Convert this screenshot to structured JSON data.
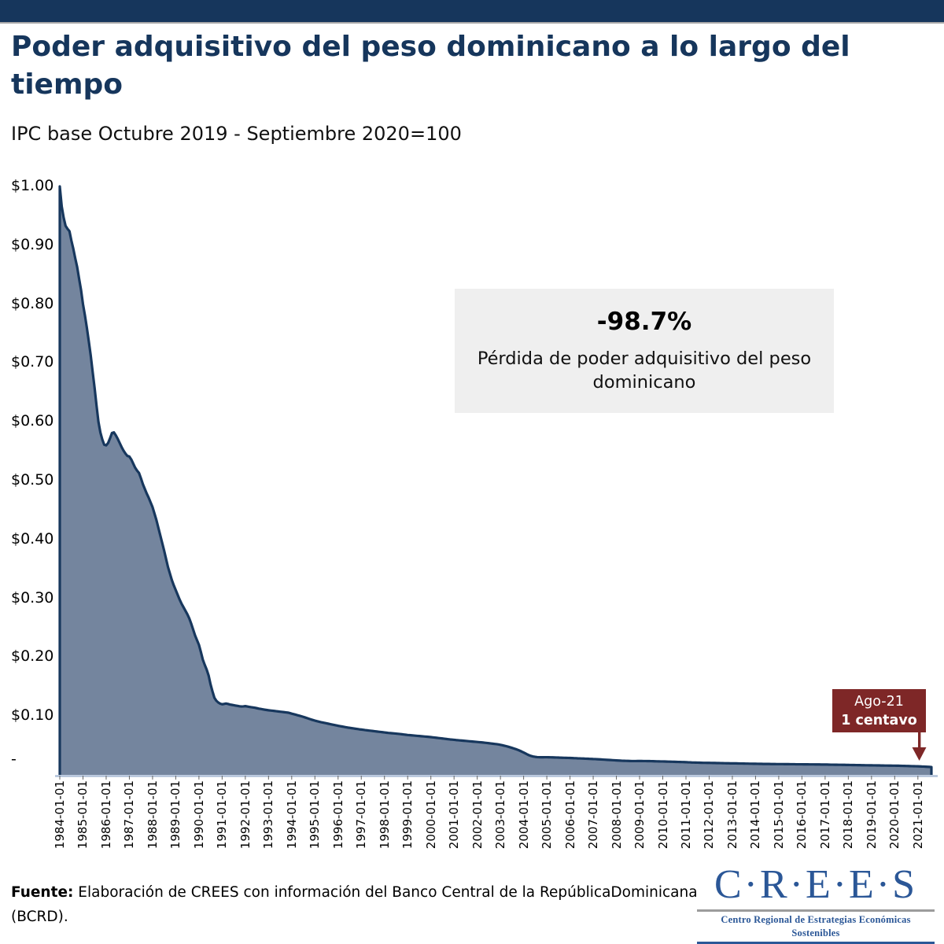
{
  "header": {
    "title": "Poder adquisitivo del peso dominicano a lo largo del tiempo",
    "subtitle": "IPC base Octubre 2019 - Septiembre 2020=100",
    "bar_color": "#16365C"
  },
  "annotation": {
    "headline": "-98.7%",
    "text": "Pérdida de poder adquisitivo del peso dominicano"
  },
  "callout": {
    "label": "Ago-21",
    "value": "1 centavo",
    "color": "#7E2727"
  },
  "footer": {
    "source_label": "Fuente:",
    "source_text": " Elaboración de CREES con información del Banco Central de la RepúblicaDominicana (BCRD).",
    "logo": {
      "name": "C·R·E·E·S",
      "tagline": "Centro Regional de Estrategias Económicas Sostenibles",
      "color": "#2B5797"
    }
  },
  "chart_data": {
    "type": "area",
    "title": "Poder adquisitivo del peso dominicano a lo largo del tiempo",
    "subtitle": "IPC base Octubre 2019 - Septiembre 2020=100",
    "frequency": "monthly",
    "x_start": "1984-01",
    "x_end": "2021-08",
    "ylim": [
      0,
      1
    ],
    "grid": false,
    "legend": false,
    "final_value_label": "1 centavo (Ago-21)",
    "total_loss_pct": -98.7,
    "colors": {
      "area_fill": "#74859E",
      "line": "#17375D",
      "axis": "#AFC0D8"
    },
    "y_tick_labels": [
      "$1.00",
      "$0.90",
      "$0.80",
      "$0.70",
      "$0.60",
      "$0.50",
      "$0.40",
      "$0.30",
      "$0.20",
      "$0.10",
      "-"
    ],
    "y_tick_values": [
      1.0,
      0.9,
      0.8,
      0.7,
      0.6,
      0.5,
      0.4,
      0.3,
      0.2,
      0.1,
      0
    ],
    "x_tick_labels": [
      "1984-01-01",
      "1985-01-01",
      "1986-01-01",
      "1987-01-01",
      "1988-01-01",
      "1989-01-01",
      "1990-01-01",
      "1991-01-01",
      "1992-01-01",
      "1993-01-01",
      "1994-01-01",
      "1995-01-01",
      "1996-01-01",
      "1997-01-01",
      "1998-01-01",
      "1999-01-01",
      "2000-01-01",
      "2001-01-01",
      "2002-01-01",
      "2003-01-01",
      "2004-01-01",
      "2005-01-01",
      "2006-01-01",
      "2007-01-01",
      "2008-01-01",
      "2009-01-01",
      "2010-01-01",
      "2011-01-01",
      "2012-01-01",
      "2013-01-01",
      "2014-01-01",
      "2015-01-01",
      "2016-01-01",
      "2017-01-01",
      "2018-01-01",
      "2019-01-01",
      "2020-01-01",
      "2021-01-01"
    ],
    "values": [
      1.0,
      0.966,
      0.947,
      0.933,
      0.928,
      0.924,
      0.908,
      0.894,
      0.878,
      0.863,
      0.843,
      0.824,
      0.8,
      0.781,
      0.76,
      0.737,
      0.713,
      0.685,
      0.658,
      0.628,
      0.6,
      0.582,
      0.57,
      0.561,
      0.56,
      0.564,
      0.572,
      0.581,
      0.582,
      0.577,
      0.571,
      0.564,
      0.557,
      0.551,
      0.546,
      0.542,
      0.541,
      0.536,
      0.529,
      0.522,
      0.517,
      0.513,
      0.504,
      0.494,
      0.486,
      0.478,
      0.471,
      0.463,
      0.455,
      0.444,
      0.433,
      0.42,
      0.407,
      0.394,
      0.381,
      0.367,
      0.353,
      0.342,
      0.331,
      0.322,
      0.314,
      0.306,
      0.298,
      0.291,
      0.285,
      0.279,
      0.273,
      0.266,
      0.257,
      0.247,
      0.237,
      0.229,
      0.221,
      0.209,
      0.196,
      0.187,
      0.179,
      0.169,
      0.154,
      0.142,
      0.131,
      0.126,
      0.123,
      0.121,
      0.12,
      0.1205,
      0.1212,
      0.1206,
      0.1196,
      0.119,
      0.1184,
      0.1178,
      0.1172,
      0.1166,
      0.1162,
      0.1164,
      0.1168,
      0.1162,
      0.1156,
      0.115,
      0.1145,
      0.114,
      0.1133,
      0.1126,
      0.112,
      0.1114,
      0.1108,
      0.1103,
      0.1098,
      0.1094,
      0.109,
      0.1086,
      0.1082,
      0.1078,
      0.1074,
      0.107,
      0.1066,
      0.1062,
      0.1058,
      0.105,
      0.104,
      0.1032,
      0.1023,
      0.1014,
      0.1005,
      0.0996,
      0.0986,
      0.0975,
      0.0964,
      0.0953,
      0.0942,
      0.0932,
      0.0922,
      0.0913,
      0.0905,
      0.0897,
      0.089,
      0.0883,
      0.0876,
      0.0869,
      0.0862,
      0.0855,
      0.0848,
      0.0841,
      0.0834,
      0.0828,
      0.0822,
      0.0816,
      0.081,
      0.0804,
      0.0799,
      0.0794,
      0.0789,
      0.0784,
      0.0779,
      0.0774,
      0.077,
      0.0766,
      0.0761,
      0.0757,
      0.0753,
      0.0749,
      0.0745,
      0.0741,
      0.0737,
      0.0733,
      0.0729,
      0.0725,
      0.0721,
      0.0717,
      0.0713,
      0.071,
      0.0707,
      0.0704,
      0.0701,
      0.0698,
      0.0694,
      0.069,
      0.0686,
      0.0682,
      0.0678,
      0.0675,
      0.0672,
      0.0669,
      0.0666,
      0.0663,
      0.066,
      0.0657,
      0.0654,
      0.0651,
      0.0648,
      0.0645,
      0.0642,
      0.0638,
      0.0634,
      0.063,
      0.0626,
      0.0622,
      0.0618,
      0.0614,
      0.061,
      0.0606,
      0.0602,
      0.0599,
      0.0596,
      0.0592,
      0.0589,
      0.0586,
      0.0583,
      0.058,
      0.0577,
      0.0574,
      0.0571,
      0.0568,
      0.0565,
      0.0562,
      0.0559,
      0.0556,
      0.0553,
      0.055,
      0.0546,
      0.0542,
      0.0538,
      0.0534,
      0.053,
      0.0526,
      0.0522,
      0.0517,
      0.0511,
      0.0504,
      0.0496,
      0.0488,
      0.0479,
      0.0469,
      0.0459,
      0.0448,
      0.0437,
      0.0425,
      0.0411,
      0.0396,
      0.038,
      0.0363,
      0.0346,
      0.0331,
      0.032,
      0.0312,
      0.0306,
      0.0302,
      0.03,
      0.0299,
      0.0299,
      0.03,
      0.03,
      0.0299,
      0.0298,
      0.0297,
      0.0296,
      0.0295,
      0.0294,
      0.0292,
      0.0291,
      0.029,
      0.0289,
      0.0288,
      0.0287,
      0.0286,
      0.0284,
      0.0283,
      0.0281,
      0.028,
      0.0278,
      0.0277,
      0.0275,
      0.0274,
      0.0272,
      0.0271,
      0.0269,
      0.0268,
      0.0266,
      0.0264,
      0.0262,
      0.026,
      0.0258,
      0.0256,
      0.0254,
      0.0252,
      0.025,
      0.0248,
      0.0246,
      0.0244,
      0.0242,
      0.024,
      0.0239,
      0.0238,
      0.0237,
      0.0236,
      0.0235,
      0.0235,
      0.0235,
      0.0236,
      0.0236,
      0.0236,
      0.0235,
      0.0235,
      0.0234,
      0.0234,
      0.0233,
      0.0232,
      0.0231,
      0.023,
      0.0229,
      0.0228,
      0.0228,
      0.0227,
      0.0226,
      0.0225,
      0.0224,
      0.0223,
      0.0222,
      0.0221,
      0.022,
      0.0219,
      0.0218,
      0.0217,
      0.0216,
      0.0214,
      0.0213,
      0.0211,
      0.021,
      0.0209,
      0.0208,
      0.0207,
      0.0206,
      0.0205,
      0.0205,
      0.0204,
      0.0204,
      0.0203,
      0.0202,
      0.0202,
      0.0201,
      0.0201,
      0.02,
      0.0199,
      0.0198,
      0.0197,
      0.0197,
      0.0196,
      0.0196,
      0.0195,
      0.0195,
      0.0194,
      0.0193,
      0.0193,
      0.0192,
      0.0191,
      0.0191,
      0.019,
      0.019,
      0.0189,
      0.0189,
      0.0188,
      0.0187,
      0.0187,
      0.0186,
      0.0186,
      0.0185,
      0.0185,
      0.0184,
      0.0184,
      0.0184,
      0.0183,
      0.0183,
      0.0183,
      0.0183,
      0.0182,
      0.0182,
      0.0182,
      0.0181,
      0.0181,
      0.0181,
      0.018,
      0.018,
      0.018,
      0.018,
      0.0179,
      0.0179,
      0.0179,
      0.0178,
      0.0178,
      0.0178,
      0.0177,
      0.0177,
      0.0177,
      0.0176,
      0.0176,
      0.0175,
      0.0175,
      0.0174,
      0.0173,
      0.0173,
      0.0172,
      0.0172,
      0.0171,
      0.0171,
      0.017,
      0.017,
      0.0169,
      0.0169,
      0.0168,
      0.0167,
      0.0167,
      0.0166,
      0.0165,
      0.0165,
      0.0164,
      0.0164,
      0.0163,
      0.0163,
      0.0162,
      0.0162,
      0.0161,
      0.0161,
      0.016,
      0.016,
      0.0159,
      0.0159,
      0.0158,
      0.0158,
      0.0157,
      0.0157,
      0.0156,
      0.0156,
      0.0155,
      0.0155,
      0.0154,
      0.0153,
      0.0152,
      0.0151,
      0.015,
      0.0149,
      0.0148,
      0.0147,
      0.0146,
      0.0145,
      0.0144,
      0.0142,
      0.0141,
      0.0139,
      0.0137,
      0.0135,
      0.0133
    ]
  }
}
